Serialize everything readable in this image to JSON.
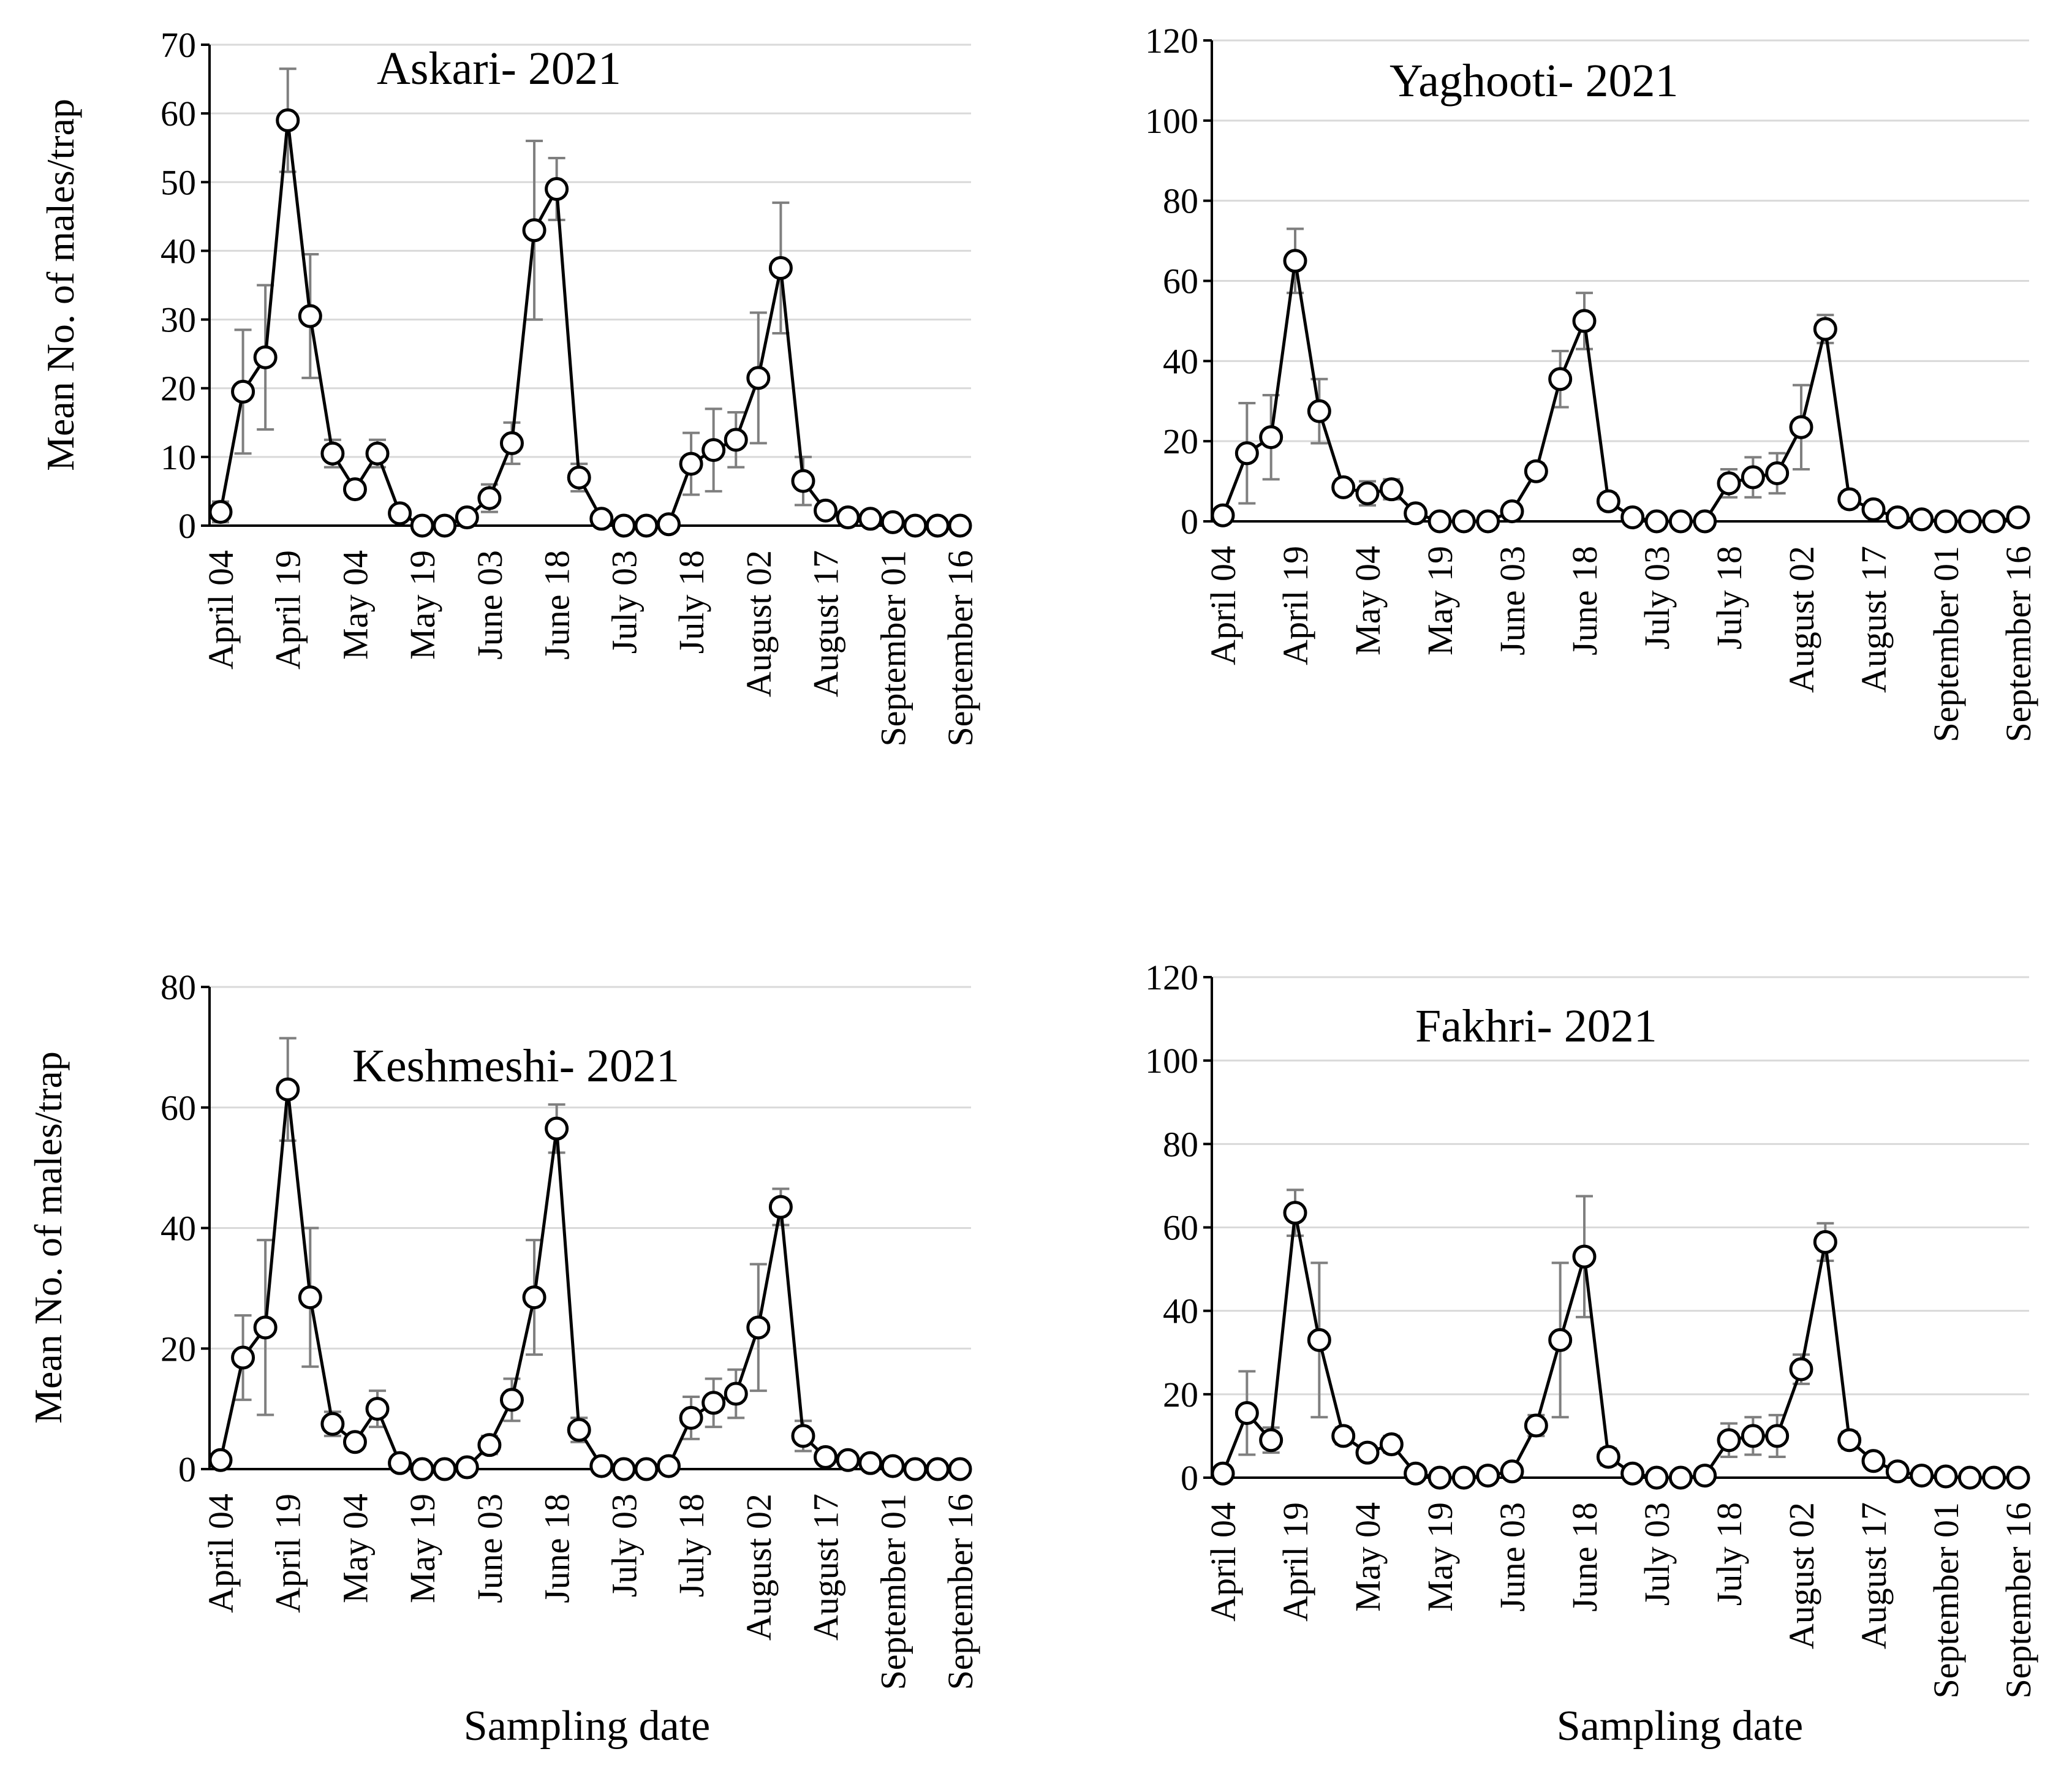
{
  "chart_data": [
    {
      "type": "line",
      "title": "Askari- 2021",
      "ylabel": "Mean No. of males/trap",
      "xlabel": "",
      "ylim": [
        0,
        70
      ],
      "yticks": [
        0,
        10,
        20,
        30,
        40,
        50,
        60,
        70
      ],
      "xtick_labels": [
        "April 04",
        "April 19",
        "May 04",
        "May 19",
        "June 03",
        "June 18",
        "July 03",
        "July 18",
        "August 02",
        "August 17",
        "September 01",
        "September 16"
      ],
      "series": [
        {
          "name": "Askari",
          "values": [
            2,
            19.5,
            24.5,
            59,
            30.5,
            10.5,
            5.3,
            10.5,
            1.8,
            0,
            0,
            1.2,
            4,
            12,
            43,
            49,
            7,
            1,
            0,
            0,
            0.2,
            9,
            11,
            12.5,
            21.5,
            37.5,
            6.5,
            2.2,
            1.2,
            1,
            0.5,
            0,
            0,
            0
          ],
          "errors": [
            1.5,
            9,
            10.5,
            7.5,
            9,
            2,
            1,
            2,
            0.5,
            0,
            0,
            0.5,
            2,
            3,
            13,
            4.5,
            2,
            0.5,
            0,
            0,
            0.1,
            4.5,
            6,
            4,
            9.5,
            9.5,
            3.5,
            1,
            0.6,
            0.5,
            0.3,
            0,
            0,
            0
          ]
        }
      ]
    },
    {
      "type": "line",
      "title": "Yaghooti- 2021",
      "ylabel": "",
      "xlabel": "",
      "ylim": [
        0,
        120
      ],
      "yticks": [
        0,
        20,
        40,
        60,
        80,
        100,
        120
      ],
      "xtick_labels": [
        "April 04",
        "April 19",
        "May 04",
        "May 19",
        "June 03",
        "June 18",
        "July 03",
        "July 18",
        "August 02",
        "August 17",
        "September 01",
        "September 16"
      ],
      "series": [
        {
          "name": "Yaghooti",
          "values": [
            1.5,
            17,
            21,
            65,
            27.5,
            8.5,
            7,
            8,
            2,
            0,
            0,
            0,
            2.5,
            12.5,
            35.5,
            50,
            5,
            1,
            0,
            0,
            0,
            9.5,
            11,
            12,
            23.5,
            48,
            5.5,
            3,
            1,
            0.5,
            0,
            0,
            0,
            1
          ],
          "errors": [
            1,
            12.5,
            10.5,
            8,
            8,
            2,
            3,
            2.5,
            1,
            0,
            0,
            0,
            1,
            2,
            7,
            7,
            2,
            0.5,
            0,
            0,
            0,
            3.5,
            5,
            5,
            10.5,
            3.5,
            2,
            1,
            0.5,
            0.3,
            0,
            0,
            0,
            0.5
          ]
        }
      ]
    },
    {
      "type": "line",
      "title": "Keshmeshi- 2021",
      "ylabel": "Mean No. of males/trap",
      "xlabel": "Sampling date",
      "ylim": [
        0,
        80
      ],
      "yticks": [
        0,
        20,
        40,
        60,
        80
      ],
      "xtick_labels": [
        "April 04",
        "April 19",
        "May 04",
        "May 19",
        "June 03",
        "June 18",
        "July 03",
        "July 18",
        "August 02",
        "August 17",
        "September 01",
        "September 16"
      ],
      "series": [
        {
          "name": "Keshmeshi",
          "values": [
            1.5,
            18.5,
            23.5,
            63,
            28.5,
            7.5,
            4.5,
            10,
            1,
            0,
            0,
            0.3,
            4,
            11.5,
            28.5,
            56.5,
            6.5,
            0.5,
            0,
            0,
            0.5,
            8.5,
            11,
            12.5,
            23.5,
            43.5,
            5.5,
            2,
            1.5,
            1,
            0.5,
            0,
            0,
            0
          ],
          "errors": [
            1,
            7,
            14.5,
            8.5,
            11.5,
            2,
            1,
            3,
            0.5,
            0,
            0,
            0.2,
            1.5,
            3.5,
            9.5,
            4,
            2,
            0.3,
            0,
            0,
            0.3,
            3.5,
            4,
            4,
            10.5,
            3,
            2.5,
            1,
            0.6,
            0.5,
            0.3,
            0,
            0,
            0
          ]
        }
      ]
    },
    {
      "type": "line",
      "title": "Fakhri- 2021",
      "ylabel": "",
      "xlabel": "Sampling date",
      "ylim": [
        0,
        120
      ],
      "yticks": [
        0,
        20,
        40,
        60,
        80,
        100,
        120
      ],
      "xtick_labels": [
        "April 04",
        "April 19",
        "May 04",
        "May 19",
        "June 03",
        "June 18",
        "July 03",
        "July 18",
        "August 02",
        "August 17",
        "September 01",
        "September 16"
      ],
      "series": [
        {
          "name": "Fakhri",
          "values": [
            1,
            15.5,
            9,
            63.5,
            33,
            10,
            6,
            8,
            1,
            0,
            0,
            0.5,
            1.5,
            12.5,
            33,
            53,
            5,
            1,
            0,
            0,
            0.5,
            9,
            10,
            10,
            26,
            56.5,
            9,
            4,
            1.5,
            0.5,
            0.3,
            0,
            0,
            0
          ],
          "errors": [
            0.5,
            10,
            3,
            5.5,
            18.5,
            2,
            1.5,
            2,
            0.5,
            0,
            0,
            0.3,
            1,
            2.5,
            18.5,
            14.5,
            2,
            0.5,
            0,
            0,
            0.3,
            4,
            4.5,
            5,
            3.5,
            4.5,
            2,
            1.5,
            0.5,
            0.3,
            0.2,
            0,
            0,
            0
          ]
        }
      ]
    }
  ]
}
